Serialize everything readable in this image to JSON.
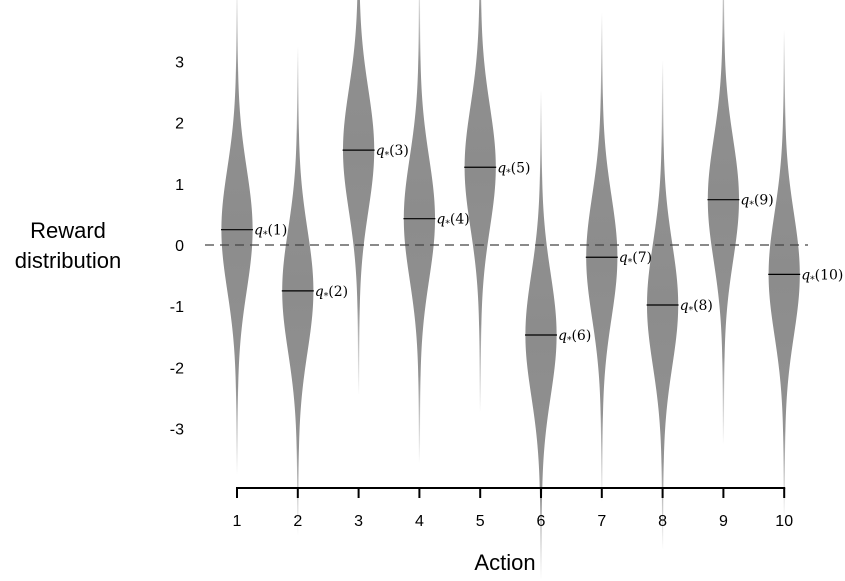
{
  "chart_data": {
    "type": "violin",
    "xlabel": "Action",
    "ylabel_lines": [
      "Reward",
      "distribution"
    ],
    "x_ticks": [
      "1",
      "2",
      "3",
      "4",
      "5",
      "6",
      "7",
      "8",
      "9",
      "10"
    ],
    "y_ticks": [
      "3",
      "2",
      "1",
      "0",
      "-1",
      "-2",
      "-3"
    ],
    "y_tick_values": [
      3,
      2,
      1,
      0,
      -1,
      -2,
      -3
    ],
    "ylim": [
      -4,
      4
    ],
    "reference_line": {
      "y": 0,
      "style": "dashed"
    },
    "distribution_sd": 1,
    "fill_color": "#8c8c8c",
    "actions": [
      {
        "x": "1",
        "mean": 0.25,
        "label_symbol": "q",
        "label_sub": "*",
        "label_arg": "(1)"
      },
      {
        "x": "2",
        "mean": -0.75,
        "label_symbol": "q",
        "label_sub": "*",
        "label_arg": "(2)"
      },
      {
        "x": "3",
        "mean": 1.55,
        "label_symbol": "q",
        "label_sub": "*",
        "label_arg": "(3)"
      },
      {
        "x": "4",
        "mean": 0.43,
        "label_symbol": "q",
        "label_sub": "*",
        "label_arg": "(4)"
      },
      {
        "x": "5",
        "mean": 1.27,
        "label_symbol": "q",
        "label_sub": "*",
        "label_arg": "(5)"
      },
      {
        "x": "6",
        "mean": -1.47,
        "label_symbol": "q",
        "label_sub": "*",
        "label_arg": "(6)"
      },
      {
        "x": "7",
        "mean": -0.2,
        "label_symbol": "q",
        "label_sub": "*",
        "label_arg": "(7)"
      },
      {
        "x": "8",
        "mean": -0.98,
        "label_symbol": "q",
        "label_sub": "*",
        "label_arg": "(8)"
      },
      {
        "x": "9",
        "mean": 0.74,
        "label_symbol": "q",
        "label_sub": "*",
        "label_arg": "(9)"
      },
      {
        "x": "10",
        "mean": -0.48,
        "label_symbol": "q",
        "label_sub": "*",
        "label_arg": "(10)"
      }
    ]
  }
}
